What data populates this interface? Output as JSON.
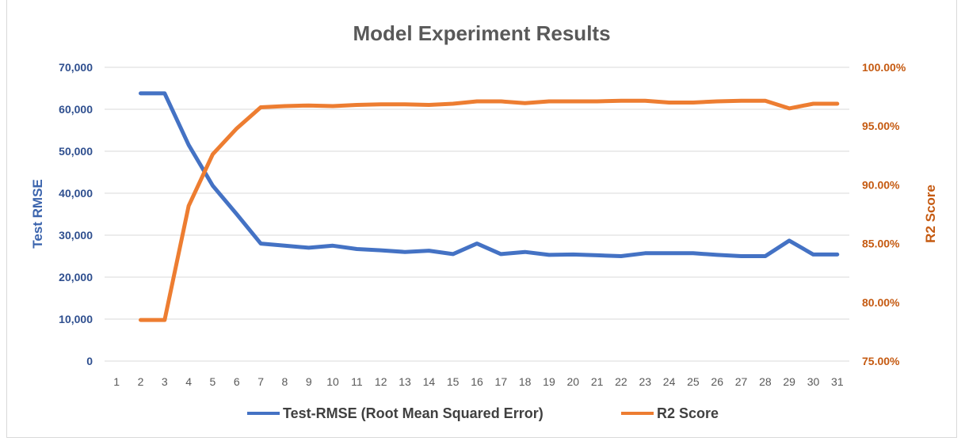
{
  "chart_data": {
    "type": "line",
    "title": "Model Experiment Results",
    "categories": [
      "1",
      "2",
      "3",
      "4",
      "5",
      "6",
      "7",
      "8",
      "9",
      "10",
      "11",
      "12",
      "13",
      "14",
      "15",
      "16",
      "17",
      "18",
      "19",
      "20",
      "21",
      "22",
      "23",
      "24",
      "25",
      "26",
      "27",
      "28",
      "29",
      "30",
      "31"
    ],
    "y_left": {
      "label": "Test RMSE",
      "ylim": [
        0,
        70000
      ],
      "ticks": [
        0,
        10000,
        20000,
        30000,
        40000,
        50000,
        60000,
        70000
      ],
      "tick_labels": [
        "0",
        "10,000",
        "20,000",
        "30,000",
        "40,000",
        "50,000",
        "60,000",
        "70,000"
      ]
    },
    "y_right": {
      "label": "R2 Score",
      "ylim": [
        0.75,
        1.0
      ],
      "ticks": [
        0.75,
        0.8,
        0.85,
        0.9,
        0.95,
        1.0
      ],
      "tick_labels": [
        "75.00%",
        "80.00%",
        "85.00%",
        "90.00%",
        "95.00%",
        "100.00%"
      ]
    },
    "series": [
      {
        "name": "Test-RMSE (Root Mean Squared Error)",
        "axis": "left",
        "color": "#4472c4",
        "values": [
          null,
          63800,
          63800,
          51500,
          41800,
          35000,
          28000,
          27500,
          27000,
          27500,
          26700,
          26400,
          26000,
          26300,
          25500,
          28000,
          25500,
          26000,
          25300,
          25400,
          25200,
          25000,
          25700,
          25700,
          25700,
          25300,
          25000,
          25000,
          28700,
          25400,
          25400
        ]
      },
      {
        "name": "R2 Score",
        "axis": "right",
        "color": "#ed7d31",
        "values": [
          null,
          0.785,
          0.785,
          0.882,
          0.926,
          0.948,
          0.966,
          0.967,
          0.9675,
          0.967,
          0.968,
          0.9685,
          0.9685,
          0.968,
          0.969,
          0.971,
          0.971,
          0.9695,
          0.971,
          0.971,
          0.971,
          0.9715,
          0.9715,
          0.97,
          0.97,
          0.971,
          0.9715,
          0.9715,
          0.965,
          0.969,
          0.969
        ]
      }
    ],
    "grid": true,
    "legend_position": "bottom"
  }
}
